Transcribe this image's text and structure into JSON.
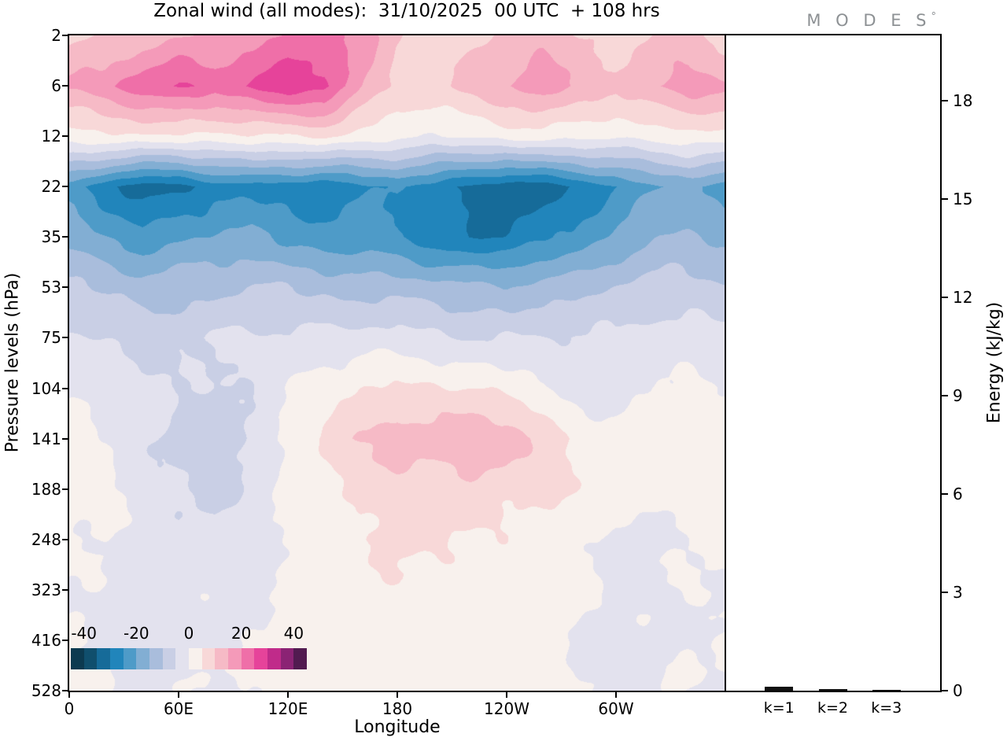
{
  "title": "Zonal wind (all modes):  31/10/2025  00 UTC  + 108 hrs",
  "logo": {
    "text": "M O D E S",
    "degree": "°"
  },
  "axes": {
    "x_label": "Longitude",
    "y_label": "Pressure levels (hPa)",
    "energy_label": "Energy (kJ/kg)"
  },
  "chart_data": [
    {
      "type": "heatmap",
      "title": "Zonal wind (all modes): 31/10/2025 00 UTC + 108 hrs",
      "xlabel": "Longitude",
      "ylabel": "Pressure levels (hPa)",
      "x_range": [
        0,
        360
      ],
      "x_tick_values": [
        0,
        60,
        120,
        180,
        240,
        300
      ],
      "x_ticks": [
        "0",
        "60E",
        "120E",
        "180",
        "120W",
        "60W"
      ],
      "pressure_levels": [
        2,
        6,
        12,
        22,
        35,
        53,
        75,
        104,
        141,
        188,
        248,
        323,
        416,
        528
      ],
      "y_tick_labels": [
        "2",
        "6",
        "12",
        "22",
        "35",
        "53",
        "75",
        "104",
        "141",
        "188",
        "248",
        "323",
        "416",
        "528"
      ],
      "lon": [
        0,
        20,
        40,
        60,
        80,
        100,
        120,
        140,
        160,
        180,
        200,
        220,
        240,
        260,
        280,
        300,
        320,
        340,
        360
      ],
      "values": [
        [
          8,
          10,
          12,
          14,
          16,
          18,
          22,
          24,
          18,
          10,
          6,
          8,
          12,
          14,
          10,
          8,
          10,
          12,
          8
        ],
        [
          16,
          18,
          23,
          26,
          23,
          25,
          29,
          26,
          16,
          8,
          8,
          12,
          16,
          18,
          14,
          11,
          15,
          18,
          16
        ],
        [
          3,
          4,
          5,
          4,
          3,
          4,
          5,
          6,
          3,
          1,
          0,
          1,
          2,
          2,
          2,
          1,
          2,
          3,
          3
        ],
        [
          -22,
          -28,
          -33,
          -32,
          -28,
          -26,
          -28,
          -30,
          -26,
          -24,
          -27,
          -31,
          -34,
          -32,
          -29,
          -25,
          -21,
          -19,
          -22
        ],
        [
          -17,
          -20,
          -23,
          -21,
          -19,
          -19,
          -21,
          -23,
          -24,
          -25,
          -28,
          -30,
          -29,
          -27,
          -23,
          -19,
          -15,
          -14,
          -17
        ],
        [
          -9,
          -11,
          -13,
          -12,
          -11,
          -10,
          -10,
          -11,
          -12,
          -12,
          -13,
          -14,
          -14,
          -13,
          -12,
          -10,
          -8,
          -8,
          -9
        ],
        [
          -4,
          -5,
          -6,
          -6,
          -5,
          -4,
          -4,
          -4,
          -3,
          -3,
          -4,
          -5,
          -5,
          -5,
          -4,
          -4,
          -3,
          -3,
          -4
        ],
        [
          0,
          -1,
          -3,
          -5,
          -6,
          -4,
          0,
          3,
          5,
          6,
          6,
          5,
          3,
          2,
          -3,
          -2,
          0,
          1,
          0
        ],
        [
          2,
          0,
          -4,
          -7,
          -9,
          -5,
          2,
          6,
          10,
          13,
          12,
          15,
          13,
          8,
          4,
          2,
          2,
          3,
          2
        ],
        [
          2,
          1,
          -2,
          -5,
          -7,
          -4,
          1,
          4,
          6,
          8,
          8,
          8,
          7,
          6,
          4,
          3,
          2,
          2,
          2
        ],
        [
          1,
          0,
          -2,
          -3,
          -3,
          -2,
          1,
          3,
          5,
          6,
          6,
          5,
          4,
          3,
          1,
          -2,
          -1,
          0,
          1
        ],
        [
          0,
          -1,
          -2,
          -2,
          -1,
          -1,
          1,
          2,
          3,
          4,
          4,
          4,
          3,
          2,
          1,
          -1,
          -1,
          0,
          0
        ],
        [
          0,
          -1,
          -2,
          -1,
          -1,
          0,
          1,
          2,
          3,
          3,
          3,
          3,
          2,
          2,
          -1,
          -2,
          -1,
          0,
          0
        ],
        [
          0,
          0,
          -1,
          -1,
          0,
          0,
          1,
          2,
          2,
          3,
          2,
          2,
          1,
          1,
          0,
          -1,
          -1,
          0,
          0
        ]
      ],
      "scale": {
        "min": -45,
        "max": 45,
        "step": 5,
        "colors": [
          "#0c3a50",
          "#104f6d",
          "#166b99",
          "#2185bb",
          "#4e9bc8",
          "#82aed3",
          "#a9bddc",
          "#c9cfe5",
          "#e3e2ee",
          "#f8f1ed",
          "#f8d8d8",
          "#f6bac6",
          "#f49ab9",
          "#ef6fa8",
          "#e6439a",
          "#c02b8a",
          "#8b2374",
          "#521b50"
        ]
      },
      "colorbar_tick_values": [
        -40,
        -20,
        0,
        20,
        40
      ],
      "colorbar_tick_labels": [
        "-40",
        "-20",
        "0",
        "20",
        "40"
      ]
    },
    {
      "type": "bar",
      "categories": [
        "k=1",
        "k=2",
        "k=3"
      ],
      "values": [
        0.12,
        0.06,
        0.03
      ],
      "ylabel": "Energy (kJ/kg)",
      "y_ticks": [
        0,
        3,
        6,
        9,
        12,
        15,
        18
      ],
      "ylim": [
        0,
        20
      ],
      "bar_color": "#111111"
    }
  ]
}
